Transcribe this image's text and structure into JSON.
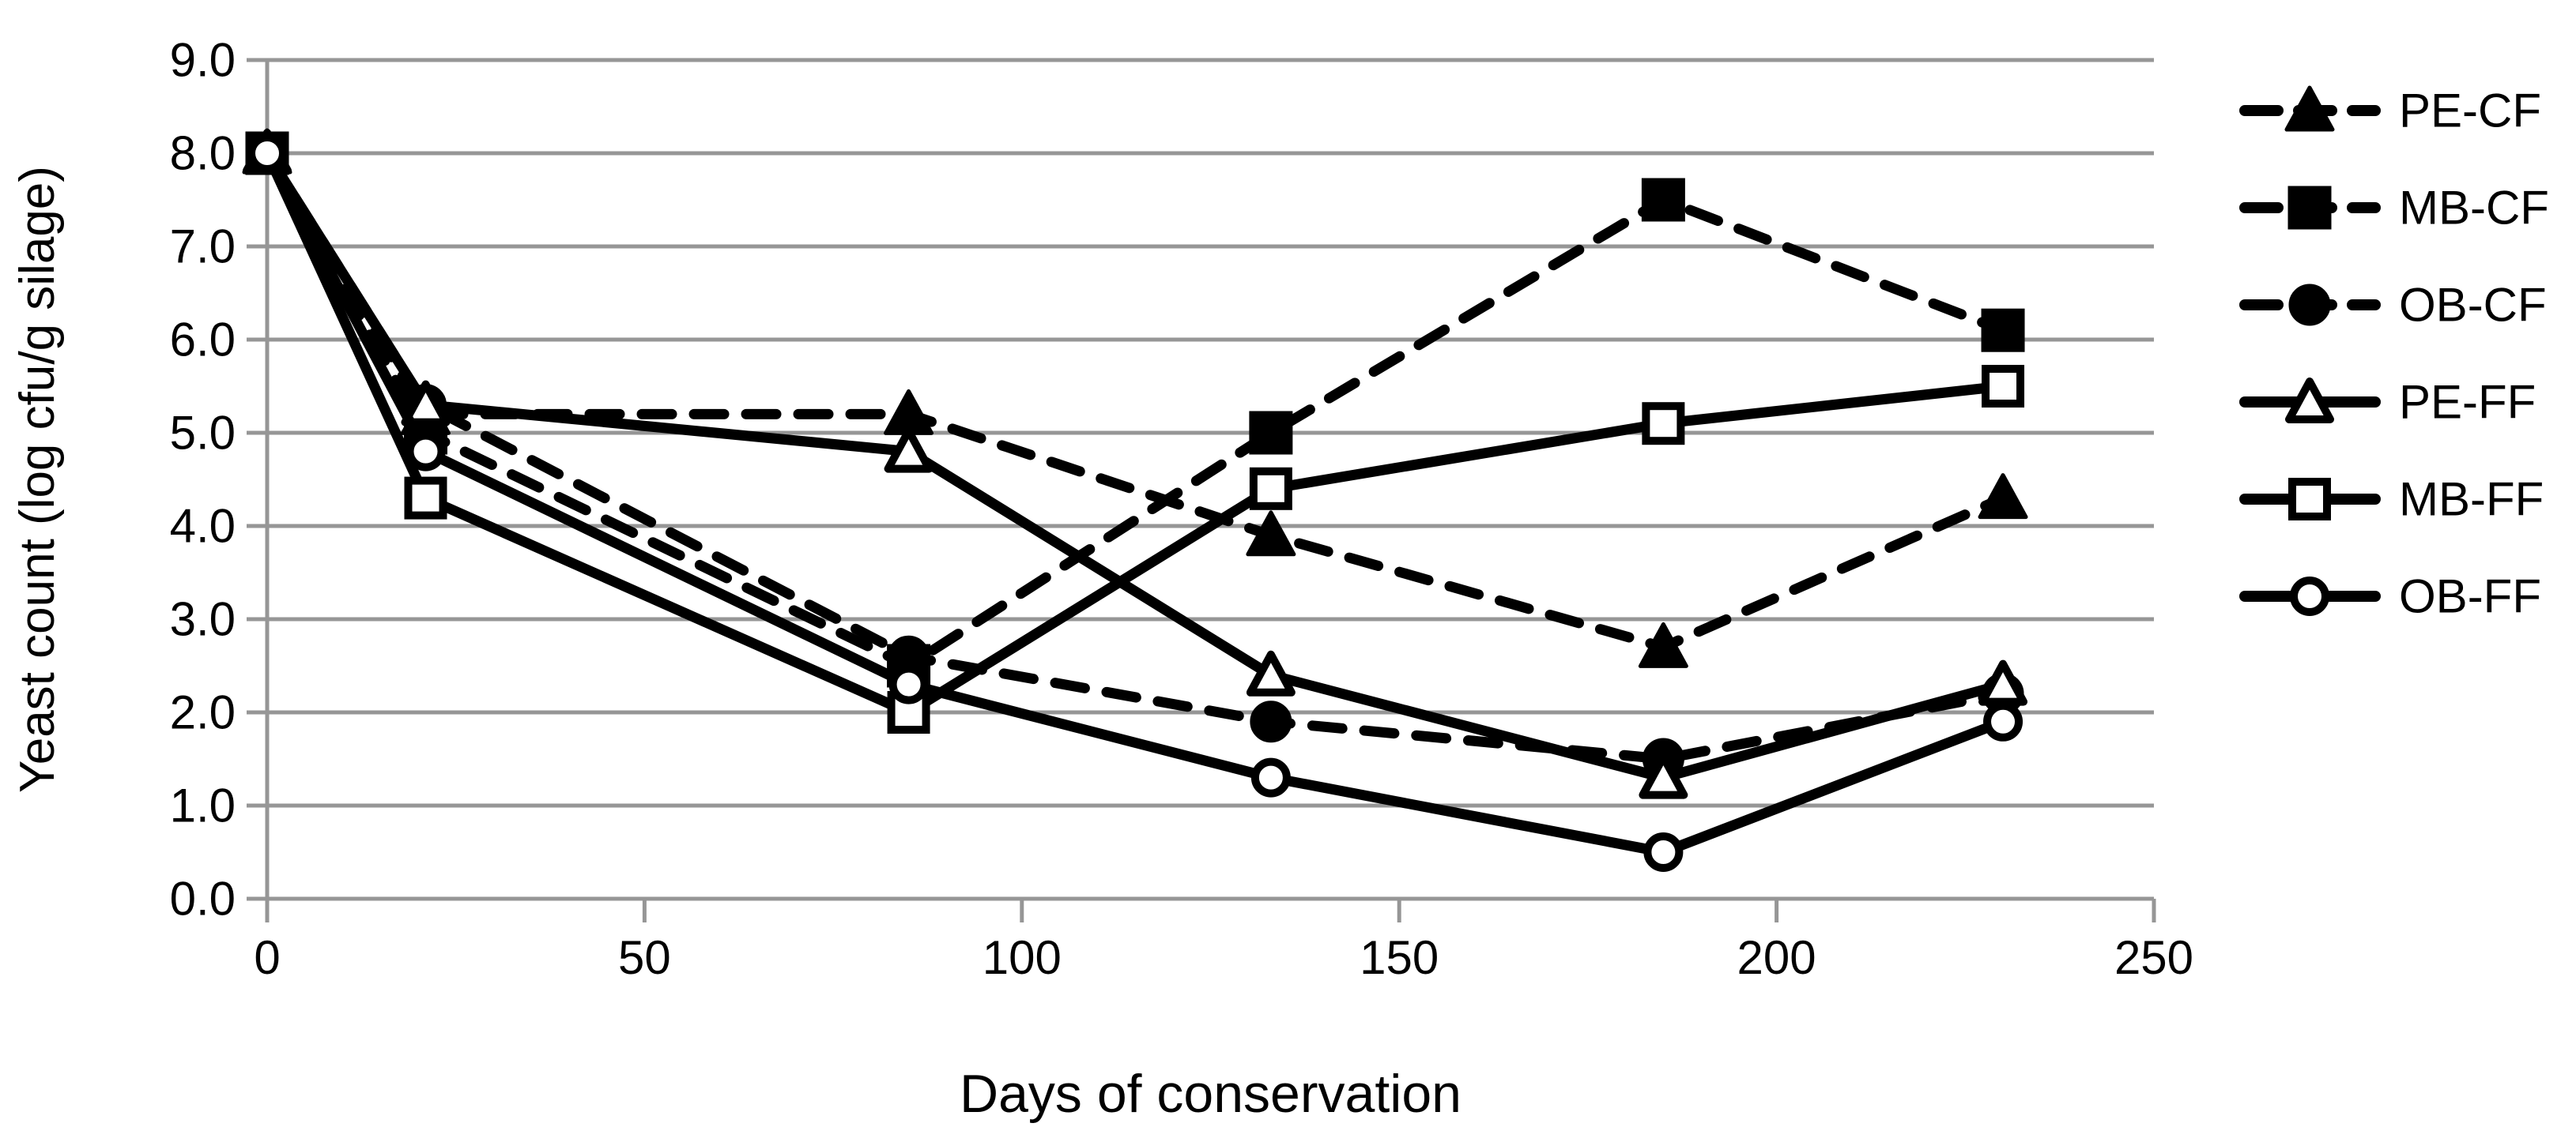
{
  "chart_data": {
    "type": "line",
    "title": "",
    "xlabel": "Days of conservation",
    "ylabel": "Yeast count (log cfu/g silage)",
    "x": [
      0,
      21,
      85,
      133,
      185,
      230
    ],
    "xlim": [
      0,
      250
    ],
    "ylim": [
      0.0,
      9.0
    ],
    "x_tick_labels": [
      "0",
      "50",
      "100",
      "150",
      "200",
      "250"
    ],
    "x_tick_values": [
      0,
      50,
      100,
      150,
      200,
      250
    ],
    "y_tick_labels": [
      "0.0",
      "1.0",
      "2.0",
      "3.0",
      "4.0",
      "5.0",
      "6.0",
      "7.0",
      "8.0",
      "9.0"
    ],
    "y_tick_values": [
      0,
      1,
      2,
      3,
      4,
      5,
      6,
      7,
      8,
      9
    ],
    "grid": "horizontal",
    "legend_position": "right",
    "series": [
      {
        "name": "PE-CF",
        "line": "dashed",
        "marker": "triangle",
        "marker_fill": "filled",
        "values": [
          8.0,
          5.2,
          5.2,
          3.9,
          2.7,
          4.3
        ]
      },
      {
        "name": "MB-CF",
        "line": "dashed",
        "marker": "square",
        "marker_fill": "filled",
        "values": [
          8.0,
          5.0,
          2.5,
          5.0,
          7.5,
          6.1
        ]
      },
      {
        "name": "OB-CF",
        "line": "dashed",
        "marker": "circle",
        "marker_fill": "filled",
        "values": [
          8.0,
          5.3,
          2.6,
          1.9,
          1.5,
          2.2
        ]
      },
      {
        "name": "PE-FF",
        "line": "solid",
        "marker": "triangle",
        "marker_fill": "open",
        "values": [
          8.0,
          5.3,
          4.8,
          2.4,
          1.3,
          2.3
        ]
      },
      {
        "name": "MB-FF",
        "line": "solid",
        "marker": "square",
        "marker_fill": "open",
        "values": [
          8.0,
          4.3,
          2.0,
          4.4,
          5.1,
          5.5
        ]
      },
      {
        "name": "OB-FF",
        "line": "solid",
        "marker": "circle",
        "marker_fill": "open",
        "values": [
          8.0,
          4.8,
          2.3,
          1.3,
          0.5,
          1.9
        ]
      }
    ],
    "colors": {
      "series": "#000000",
      "gridline": "#969696",
      "axis": "#969696",
      "background": "#ffffff",
      "text": "#000000"
    }
  }
}
